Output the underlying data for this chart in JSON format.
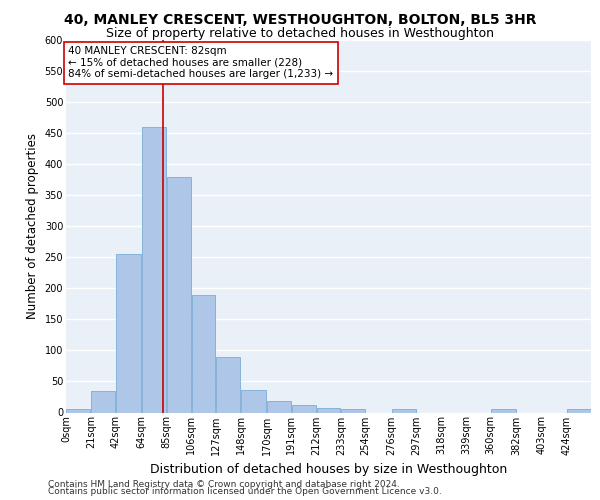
{
  "title": "40, MANLEY CRESCENT, WESTHOUGHTON, BOLTON, BL5 3HR",
  "subtitle": "Size of property relative to detached houses in Westhoughton",
  "xlabel": "Distribution of detached houses by size in Westhoughton",
  "ylabel": "Number of detached properties",
  "bar_color": "#aec6e8",
  "bar_edge_color": "#7aadd4",
  "background_color": "#eaf0f8",
  "grid_color": "#ffffff",
  "bin_edges": [
    0,
    21,
    42,
    64,
    85,
    106,
    127,
    148,
    170,
    191,
    212,
    233,
    254,
    276,
    297,
    318,
    339,
    360,
    382,
    403,
    424,
    445
  ],
  "bin_labels": [
    "0sqm",
    "21sqm",
    "42sqm",
    "64sqm",
    "85sqm",
    "106sqm",
    "127sqm",
    "148sqm",
    "170sqm",
    "191sqm",
    "212sqm",
    "233sqm",
    "254sqm",
    "276sqm",
    "297sqm",
    "318sqm",
    "339sqm",
    "360sqm",
    "382sqm",
    "403sqm",
    "424sqm"
  ],
  "bar_heights": [
    5,
    35,
    255,
    460,
    380,
    190,
    90,
    37,
    18,
    12,
    7,
    5,
    0,
    5,
    0,
    0,
    0,
    5,
    0,
    0,
    5
  ],
  "property_size": 82,
  "property_line_color": "#cc0000",
  "annotation_line1": "40 MANLEY CRESCENT: 82sqm",
  "annotation_line2": "← 15% of detached houses are smaller (228)",
  "annotation_line3": "84% of semi-detached houses are larger (1,233) →",
  "annotation_box_color": "#cc0000",
  "ylim": [
    0,
    600
  ],
  "yticks": [
    0,
    50,
    100,
    150,
    200,
    250,
    300,
    350,
    400,
    450,
    500,
    550,
    600
  ],
  "footer_line1": "Contains HM Land Registry data © Crown copyright and database right 2024.",
  "footer_line2": "Contains public sector information licensed under the Open Government Licence v3.0.",
  "title_fontsize": 10,
  "subtitle_fontsize": 9,
  "xlabel_fontsize": 9,
  "ylabel_fontsize": 8.5,
  "tick_fontsize": 7,
  "annotation_fontsize": 7.5,
  "footer_fontsize": 6.5
}
